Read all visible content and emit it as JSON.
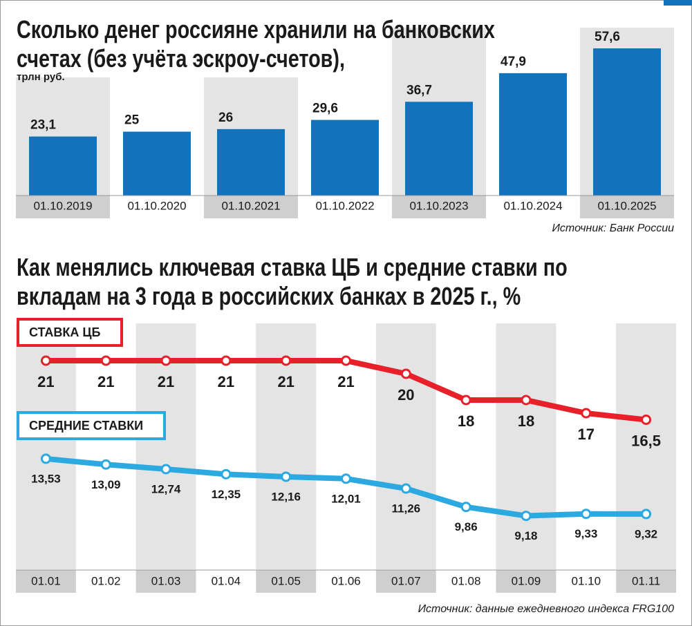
{
  "chart_data": [
    {
      "type": "bar",
      "title": "Сколько денег россияне хранили на банковских счетах (без учёта эскроу-счетов),",
      "subtitle": "трлн руб.",
      "categories": [
        "01.10.2019",
        "01.10.2020",
        "01.10.2021",
        "01.10.2022",
        "01.10.2023",
        "01.10.2024",
        "01.10.2025"
      ],
      "values": [
        23.1,
        25,
        26,
        29.6,
        36.7,
        47.9,
        57.6
      ],
      "value_labels": [
        "23,1",
        "25",
        "26",
        "29,6",
        "36,7",
        "47,9",
        "57,6"
      ],
      "color": "#1273bd",
      "source": "Источник: Банк России"
    },
    {
      "type": "line",
      "title": "Как менялись ключевая ставка ЦБ и средние ставки по вкладам на 3 года в российских банках в 2025 г., %",
      "categories": [
        "01.01",
        "01.02",
        "01.03",
        "01.04",
        "01.05",
        "01.06",
        "01.07",
        "01.08",
        "01.09",
        "01.10",
        "01.11"
      ],
      "series": [
        {
          "name": "СТАВКА ЦБ",
          "color": "#e8202a",
          "values": [
            21,
            21,
            21,
            21,
            21,
            21,
            20,
            18,
            18,
            17,
            16.5
          ],
          "value_labels": [
            "21",
            "21",
            "21",
            "21",
            "21",
            "21",
            "20",
            "18",
            "18",
            "17",
            "16,5"
          ]
        },
        {
          "name": "СРЕДНИЕ СТАВКИ",
          "color": "#2ba9e0",
          "values": [
            13.53,
            13.09,
            12.74,
            12.35,
            12.16,
            12.01,
            11.26,
            9.86,
            9.18,
            9.33,
            9.32
          ],
          "value_labels": [
            "13,53",
            "13,09",
            "12,74",
            "12,35",
            "12,16",
            "12,01",
            "11,26",
            "9,86",
            "9,18",
            "9,33",
            "9,32"
          ]
        }
      ],
      "source": "Источник: данные ежедневного индекса FRG100"
    }
  ]
}
